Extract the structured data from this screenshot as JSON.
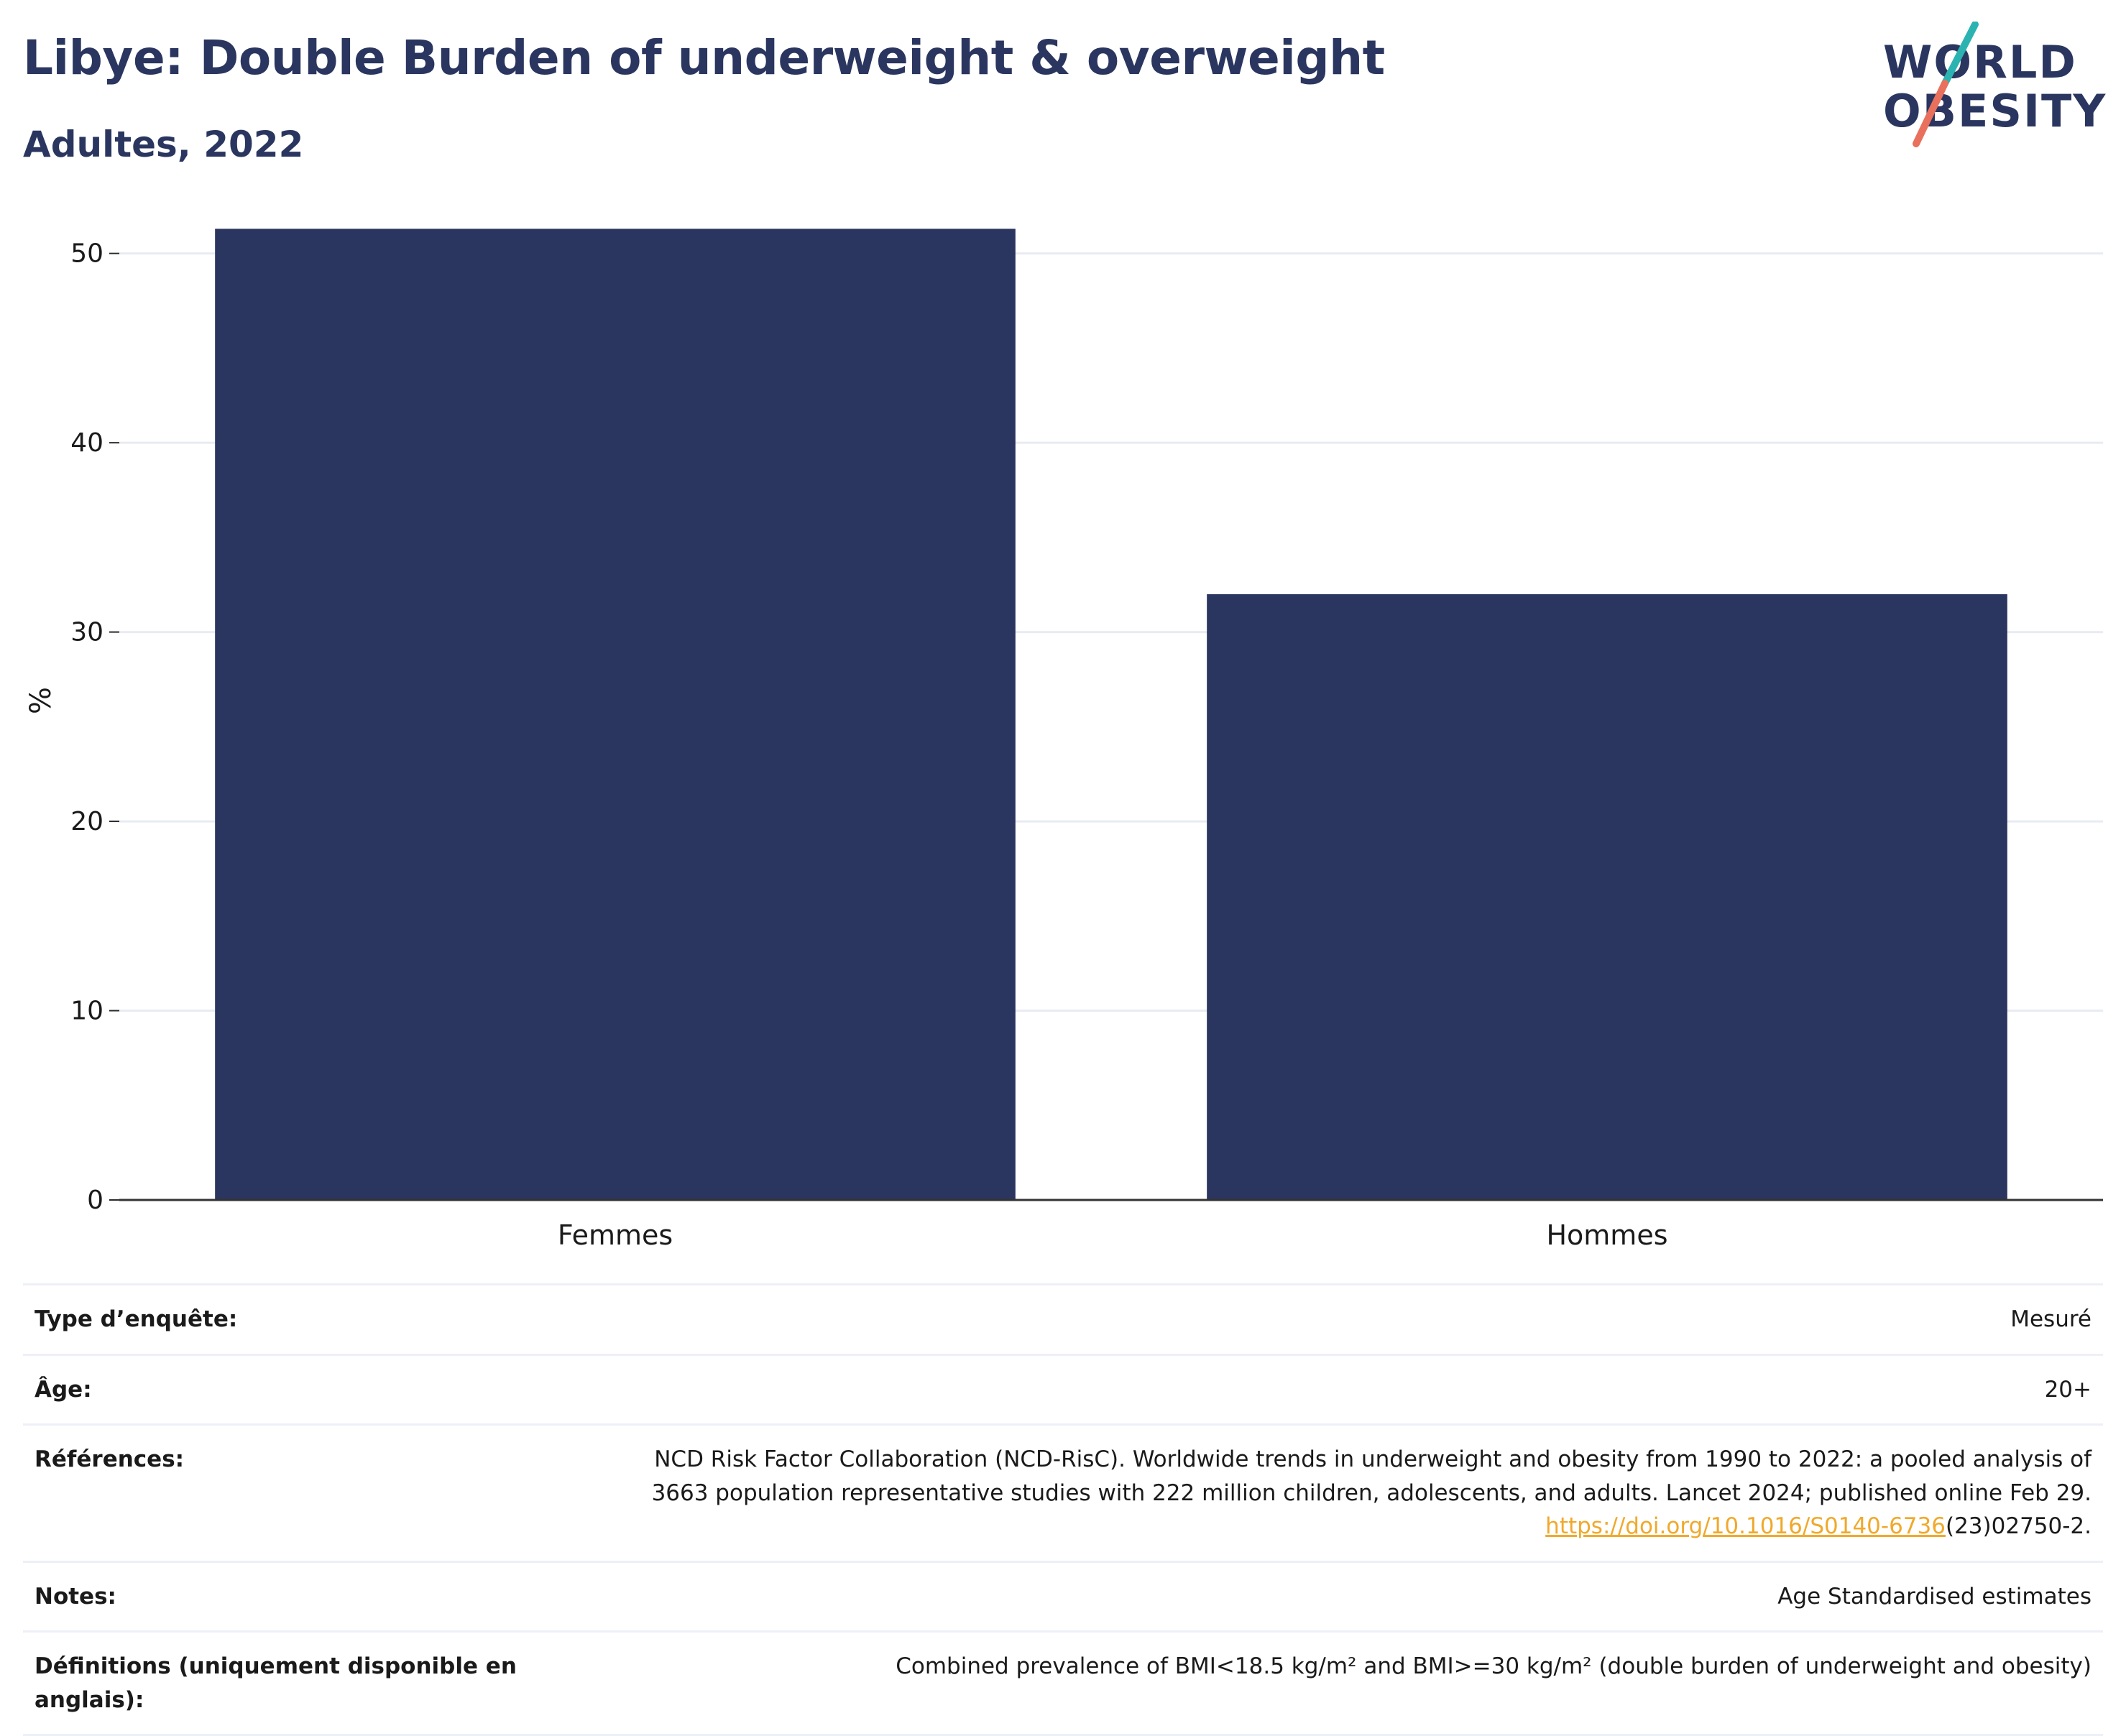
{
  "header": {
    "title": "Libye: Double Burden of underweight & overweight",
    "subtitle": "Adultes, 2022"
  },
  "logo": {
    "line1": "WORLD",
    "line2": "OBESITY",
    "colors": {
      "text": "#2a365f",
      "teal": "#2bb3b1",
      "coral": "#e8705d"
    }
  },
  "chart_data": {
    "type": "bar",
    "categories": [
      "Femmes",
      "Hommes"
    ],
    "values": [
      51.3,
      32.0
    ],
    "ylabel": "%",
    "xlabel": "",
    "ylim": [
      0,
      52
    ],
    "yticks": [
      0,
      10,
      20,
      30,
      40,
      50
    ],
    "grid": true,
    "bar_color": "#2a365f"
  },
  "info": {
    "survey_type": {
      "label": "Type d’enquête:",
      "value": "Mesuré"
    },
    "age": {
      "label": "Âge:",
      "value": "20+"
    },
    "references": {
      "label": "Références:",
      "line1": "NCD Risk Factor Collaboration (NCD-RisC). Worldwide trends in underweight and obesity from 1990 to 2022: a pooled analysis of",
      "line2": "3663 population representative studies with 222 million children, adolescents, and adults. Lancet 2024; published online Feb 29.",
      "link": "https://doi.org/10.1016/S0140-6736",
      "link_suffix": "(23)02750-2."
    },
    "notes": {
      "label": "Notes:",
      "value": "Age Standardised estimates"
    },
    "definitions": {
      "label": "Définitions (uniquement disponible en anglais):",
      "value": "Combined prevalence of BMI<18.5 kg/m² and BMI>=30 kg/m² (double burden of underweight and obesity)"
    }
  }
}
